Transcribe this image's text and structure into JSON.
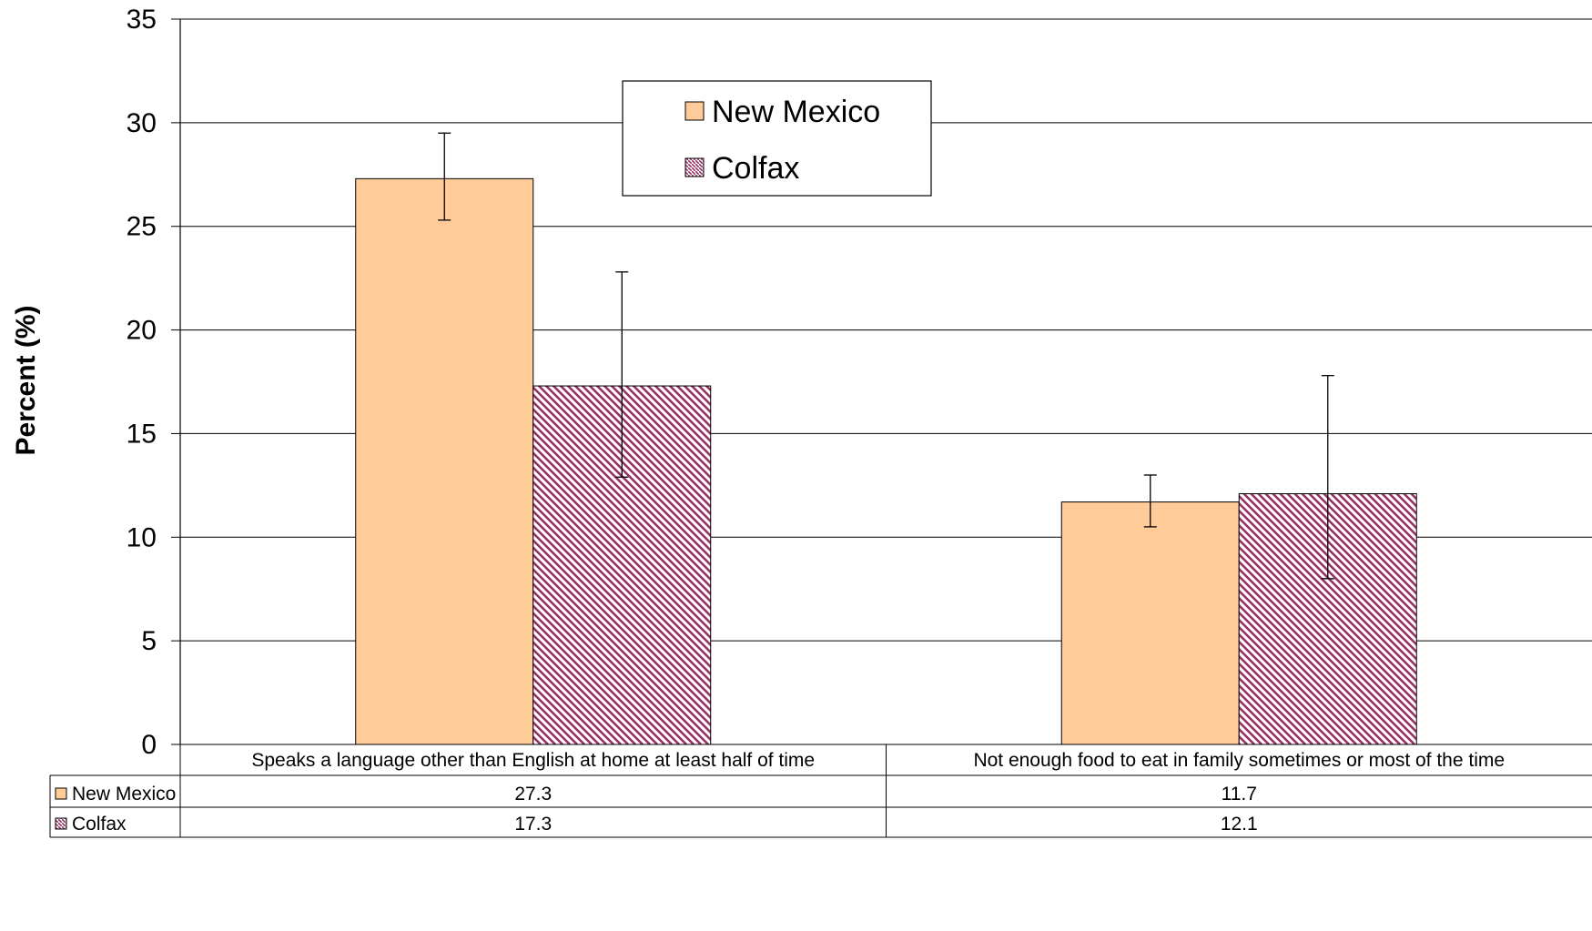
{
  "chart_data": {
    "type": "bar",
    "ylabel": "Percent (%)",
    "ylim": [
      0,
      35
    ],
    "yticks": [
      0,
      5,
      10,
      15,
      20,
      25,
      30,
      35
    ],
    "grid": true,
    "legend_position": "top-center",
    "categories": [
      "Speaks a language other than English at home at least half of time",
      "Not enough food to eat in family sometimes or most of the time"
    ],
    "series": [
      {
        "name": "New Mexico",
        "values": [
          27.3,
          11.7
        ],
        "error_low": [
          25.3,
          10.5
        ],
        "error_high": [
          29.5,
          13.0
        ],
        "fill": "#FFCC99",
        "pattern": "solid"
      },
      {
        "name": "Colfax",
        "values": [
          17.3,
          12.1
        ],
        "error_low": [
          12.9,
          8.0
        ],
        "error_high": [
          22.8,
          17.8
        ],
        "fill": "#993366",
        "pattern": "diagonal-hatch"
      }
    ],
    "data_table": {
      "rows": [
        {
          "label": "New Mexico",
          "values": [
            "27.3",
            "11.7"
          ]
        },
        {
          "label": "Colfax",
          "values": [
            "17.3",
            "12.1"
          ]
        }
      ]
    }
  }
}
